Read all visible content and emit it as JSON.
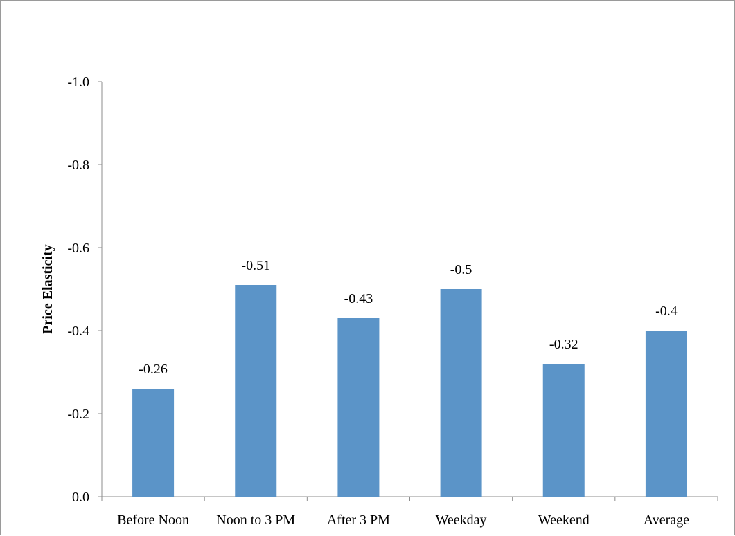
{
  "chart_data": {
    "type": "bar",
    "title": "",
    "xlabel": "",
    "ylabel": "Price Elasticity",
    "categories": [
      "Before Noon",
      "Noon to 3 PM",
      "After 3 PM",
      "Weekday",
      "Weekend",
      "Average"
    ],
    "values": [
      -0.26,
      -0.51,
      -0.43,
      -0.5,
      -0.32,
      -0.4
    ],
    "data_labels": [
      "-0.26",
      "-0.51",
      "-0.43",
      "-0.5",
      "-0.32",
      "-0.4"
    ],
    "yticks": [
      0.0,
      -0.2,
      -0.4,
      -0.6,
      -0.8,
      -1.0
    ],
    "ytick_labels": [
      "0.0",
      "-0.2",
      "-0.4",
      "-0.6",
      "-0.8",
      "-1.0"
    ],
    "ylim": [
      0.0,
      -1.0
    ],
    "y_axis_reversed": true,
    "grid": false,
    "legend": "none",
    "bar_color": "#5b94c8"
  }
}
